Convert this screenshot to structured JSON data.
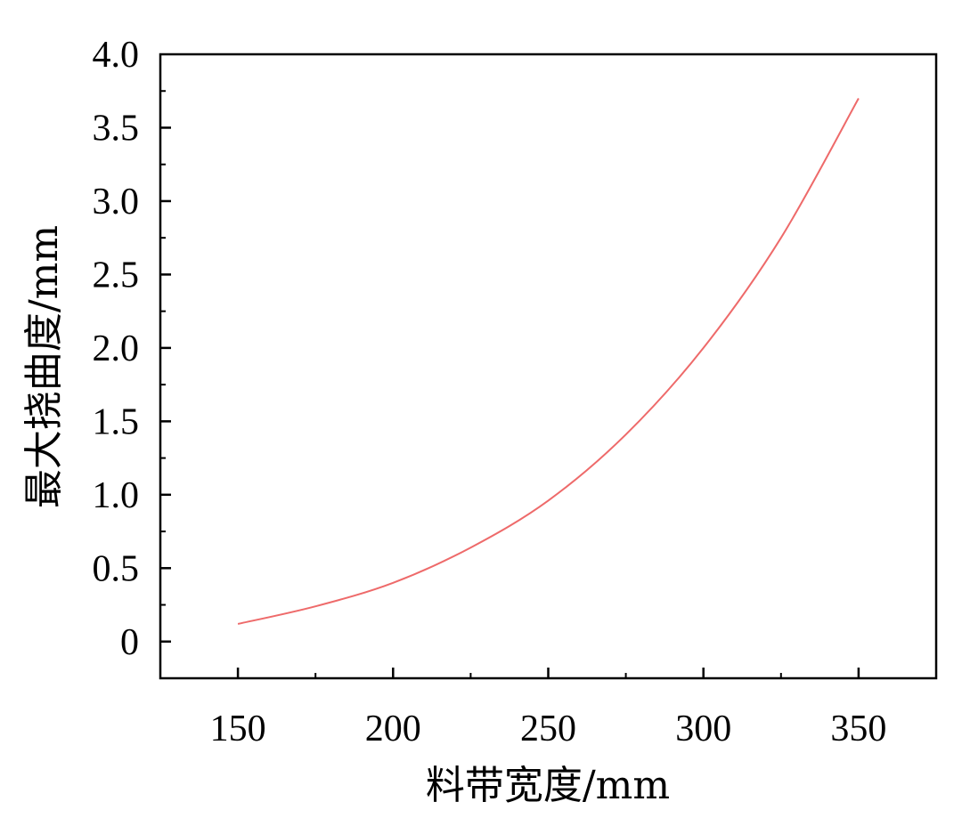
{
  "chart_data": {
    "type": "line",
    "xlabel": "料带宽度/mm",
    "ylabel": "最大挠曲度/mm",
    "xlim": [
      125,
      375
    ],
    "ylim": [
      -0.25,
      4.0
    ],
    "x_ticks": [
      150,
      200,
      250,
      300,
      350
    ],
    "x_tick_labels": [
      "150",
      "200",
      "250",
      "300",
      "350"
    ],
    "y_ticks": [
      0,
      0.5,
      1.0,
      1.5,
      2.0,
      2.5,
      3.0,
      3.5,
      4.0
    ],
    "y_tick_labels": [
      "0",
      "0.5",
      "1.0",
      "1.5",
      "2.0",
      "2.5",
      "3.0",
      "3.5",
      "4.0"
    ],
    "grid": false,
    "legend": "none",
    "series": [
      {
        "color": "#ee6a6a",
        "x": [
          150,
          175,
          200,
          225,
          250,
          275,
          300,
          325,
          350
        ],
        "y": [
          0.12,
          0.24,
          0.4,
          0.64,
          0.96,
          1.41,
          2.0,
          2.75,
          3.7
        ]
      }
    ]
  }
}
